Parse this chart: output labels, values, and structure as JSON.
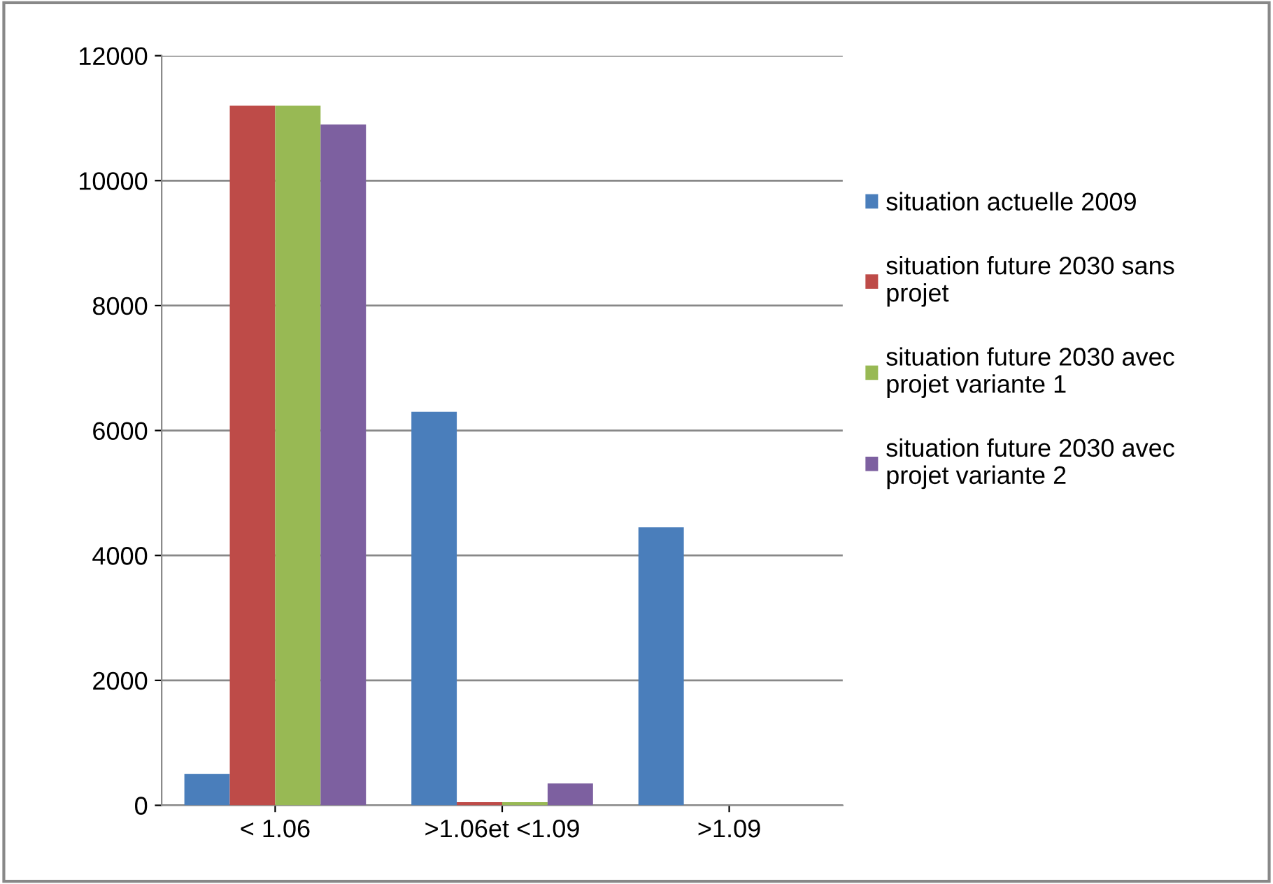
{
  "chart_data": {
    "type": "bar",
    "categories": [
      "< 1.06",
      ">1.06et <1.09",
      ">1.09"
    ],
    "series": [
      {
        "name": "situation actuelle 2009",
        "color": "#4a7ebb",
        "values": [
          500,
          6300,
          4450
        ]
      },
      {
        "name": "situation future 2030 sans projet",
        "color": "#be4b48",
        "values": [
          11200,
          50,
          0
        ]
      },
      {
        "name": "situation future 2030 avec projet variante 1",
        "color": "#98b954",
        "values": [
          11200,
          50,
          0
        ]
      },
      {
        "name": "situation future 2030 avec projet variante 2",
        "color": "#7d60a0",
        "values": [
          10900,
          350,
          0
        ]
      }
    ],
    "ylim": [
      0,
      12000
    ],
    "yticks": [
      0,
      2000,
      4000,
      6000,
      8000,
      10000,
      12000
    ],
    "grid": "y",
    "legend": "right"
  }
}
